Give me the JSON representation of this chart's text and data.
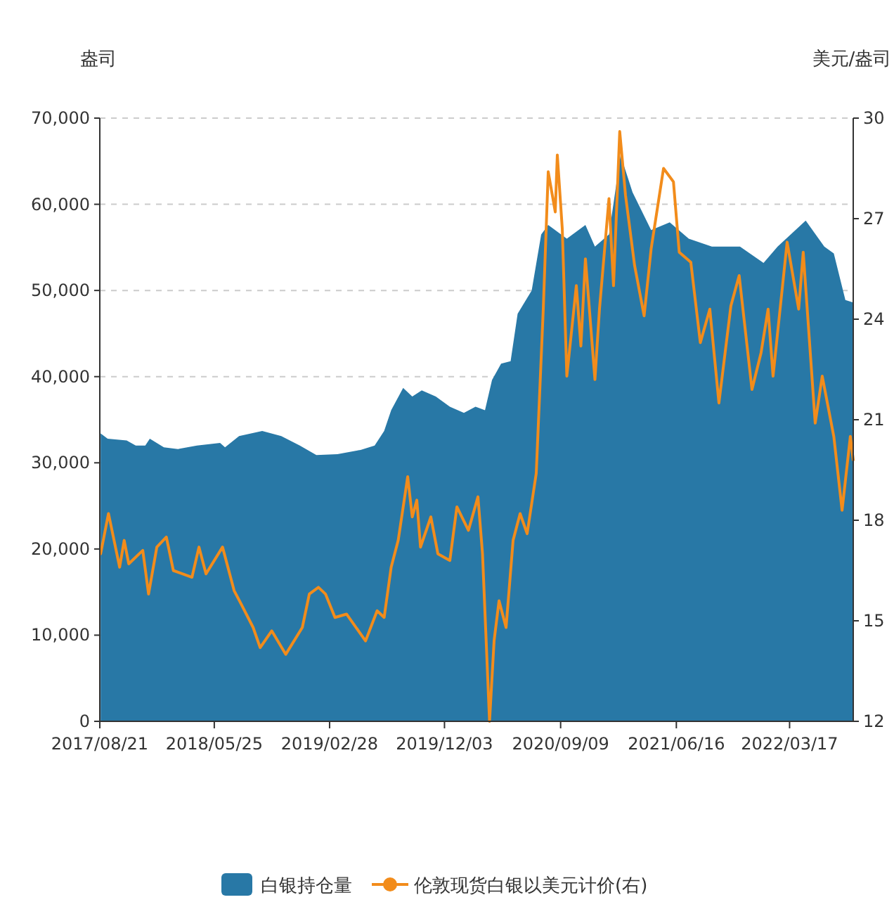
{
  "chart_data": {
    "type": "line",
    "ylabel": "盎司",
    "y2label": "美元/盎司",
    "grid": "y",
    "legend": "bottom",
    "xlim": [
      "2017-08-21",
      "2022-08-18"
    ],
    "xticks": [
      {
        "value": "2017-08-21",
        "label": "2017/08/21"
      },
      {
        "value": "2018-05-25",
        "label": "2018/05/25"
      },
      {
        "value": "2019-02-28",
        "label": "2019/02/28"
      },
      {
        "value": "2019-12-03",
        "label": "2019/12/03"
      },
      {
        "value": "2020-09-09",
        "label": "2020/09/09"
      },
      {
        "value": "2021-06-16",
        "label": "2021/06/16"
      },
      {
        "value": "2022-03-17",
        "label": "2022/03/17"
      }
    ],
    "ylim": [
      0,
      70000
    ],
    "yticks": [
      0,
      {
        "value": 10000,
        "label": "10,000"
      },
      {
        "value": 20000,
        "label": "20,000"
      },
      {
        "value": 30000,
        "label": "30,000"
      },
      {
        "value": 40000,
        "label": "40,000"
      },
      {
        "value": 50000,
        "label": "50,000"
      },
      {
        "value": 60000,
        "label": "60,000"
      },
      {
        "value": 70000,
        "label": "70,000"
      }
    ],
    "y2lim": [
      12,
      30
    ],
    "y2ticks": [
      12,
      15,
      18,
      21,
      24,
      27,
      30
    ],
    "series": [
      {
        "name": "白银持仓量",
        "type": "area",
        "color": "#2878a6",
        "x": [
          "2017-08-23",
          "2017-09-09",
          "2017-10-25",
          "2017-11-16",
          "2017-12-09",
          "2017-12-20",
          "2018-01-23",
          "2018-02-26",
          "2018-04-13",
          "2018-06-08",
          "2018-06-20",
          "2018-07-24",
          "2018-09-18",
          "2018-11-03",
          "2018-12-18",
          "2019-01-27",
          "2019-03-19",
          "2019-05-14",
          "2019-06-17",
          "2019-07-10",
          "2019-07-27",
          "2019-08-25",
          "2019-09-16",
          "2019-10-09",
          "2019-11-12",
          "2019-12-16",
          "2020-01-19",
          "2020-02-16",
          "2020-02-22",
          "2020-03-10",
          "2020-03-27",
          "2020-04-18",
          "2020-05-11",
          "2020-05-28",
          "2020-07-01",
          "2020-07-24",
          "2020-08-10",
          "2020-09-24",
          "2020-11-08",
          "2020-12-01",
          "2021-01-04",
          "2021-02-01",
          "2021-03-02",
          "2021-04-16",
          "2021-05-31",
          "2021-07-16",
          "2021-09-10",
          "2021-11-17",
          "2022-01-13",
          "2022-02-16",
          "2022-04-25",
          "2022-06-09",
          "2022-07-02",
          "2022-07-30",
          "2022-08-18"
        ],
        "values": [
          33400,
          32800,
          32600,
          32000,
          32000,
          32800,
          31800,
          31600,
          32000,
          32300,
          31800,
          33100,
          33700,
          33100,
          32000,
          30900,
          31000,
          31500,
          32000,
          33700,
          36100,
          38700,
          37700,
          38400,
          37700,
          36500,
          35800,
          36500,
          36400,
          36100,
          39600,
          41500,
          41800,
          47300,
          50000,
          56500,
          57600,
          56000,
          57600,
          55100,
          56500,
          65700,
          61400,
          57000,
          57900,
          56000,
          55100,
          55100,
          53200,
          55100,
          58100,
          55100,
          54300,
          48900,
          48600
        ]
      },
      {
        "name": "伦敦现货白银以美元计价(右)",
        "axis": "y2",
        "color": "#f28c1b",
        "x": [
          "2017-08-23",
          "2017-09-11",
          "2017-10-08",
          "2017-10-19",
          "2017-10-30",
          "2017-12-03",
          "2017-12-17",
          "2018-01-06",
          "2018-01-29",
          "2018-02-15",
          "2018-04-01",
          "2018-04-18",
          "2018-05-05",
          "2018-06-14",
          "2018-07-12",
          "2018-07-29",
          "2018-08-27",
          "2018-09-13",
          "2018-10-11",
          "2018-11-14",
          "2018-12-24",
          "2019-01-10",
          "2019-02-01",
          "2019-02-18",
          "2019-03-13",
          "2019-04-10",
          "2019-05-26",
          "2019-06-23",
          "2019-07-10",
          "2019-07-27",
          "2019-08-13",
          "2019-09-05",
          "2019-09-16",
          "2019-09-27",
          "2019-10-06",
          "2019-10-31",
          "2019-11-17",
          "2019-12-16",
          "2020-01-02",
          "2020-01-30",
          "2020-02-22",
          "2020-03-04",
          "2020-03-21",
          "2020-04-01",
          "2020-04-13",
          "2020-04-30",
          "2020-05-17",
          "2020-06-03",
          "2020-06-20",
          "2020-07-12",
          "2020-07-29",
          "2020-08-10",
          "2020-08-27",
          "2020-09-01",
          "2020-09-13",
          "2020-09-24",
          "2020-10-17",
          "2020-10-28",
          "2020-11-08",
          "2020-12-01",
          "2020-12-12",
          "2021-01-04",
          "2021-01-15",
          "2021-01-30",
          "2021-02-13",
          "2021-03-07",
          "2021-03-30",
          "2021-04-16",
          "2021-05-16",
          "2021-06-09",
          "2021-06-23",
          "2021-07-21",
          "2021-08-13",
          "2021-09-05",
          "2021-09-27",
          "2021-10-26",
          "2021-11-15",
          "2021-12-16",
          "2022-01-07",
          "2022-01-24",
          "2022-02-05",
          "2022-03-11",
          "2022-04-08",
          "2022-04-19",
          "2022-05-18",
          "2022-06-04",
          "2022-07-02",
          "2022-07-22",
          "2022-08-11",
          "2022-08-18"
        ],
        "values": [
          17.0,
          18.2,
          16.6,
          17.4,
          16.7,
          17.1,
          15.8,
          17.2,
          17.5,
          16.5,
          16.3,
          17.2,
          16.4,
          17.2,
          15.9,
          15.5,
          14.8,
          14.2,
          14.7,
          14.0,
          14.8,
          15.8,
          16.0,
          15.8,
          15.1,
          15.2,
          14.4,
          15.3,
          15.1,
          16.6,
          17.4,
          19.3,
          18.1,
          18.6,
          17.2,
          18.1,
          17.0,
          16.8,
          18.4,
          17.7,
          18.7,
          17.0,
          12.0,
          14.4,
          15.6,
          14.8,
          17.4,
          18.2,
          17.6,
          19.4,
          24.3,
          28.4,
          27.2,
          28.9,
          26.7,
          22.3,
          25.0,
          23.2,
          25.8,
          22.2,
          24.3,
          27.6,
          25.0,
          29.6,
          27.7,
          25.6,
          24.1,
          26.1,
          28.5,
          28.1,
          26.0,
          25.7,
          23.3,
          24.3,
          21.5,
          24.4,
          25.3,
          21.9,
          23.0,
          24.3,
          22.3,
          26.3,
          24.3,
          26.0,
          20.9,
          22.3,
          20.5,
          18.3,
          20.5,
          19.8
        ]
      }
    ]
  }
}
